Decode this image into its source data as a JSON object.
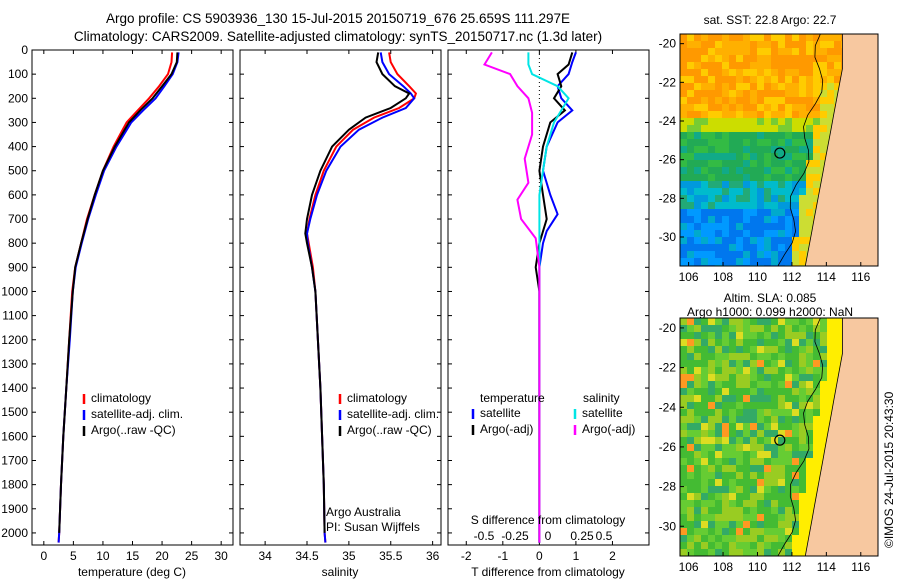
{
  "title": {
    "line1": "Argo profile: CS 5903936_130 15-Jul-2015 20150719_676 25.659S 111.297E",
    "line2": "Climatology: CARS2009. Satellite-adjusted climatology: synTS_20150717.nc (1.3d later)"
  },
  "credit": "©IMOS 24-Jul-2015 20:43:30",
  "colors": {
    "clim": "#ff0000",
    "sat": "#0000ff",
    "argo": "#000000",
    "sal_sat": "#00e5e5",
    "sal_argo": "#ff00ff",
    "land": "#f7c8a0"
  },
  "panels": {
    "temperature": {
      "xlabel": "temperature (deg C)",
      "legend": [
        "climatology",
        "satellite-adj. clim.",
        "Argo(..raw -QC)"
      ]
    },
    "salinity": {
      "xlabel": "salinity",
      "legend": [
        "climatology",
        "satellite-adj. clim.",
        "Argo(..raw -QC)"
      ],
      "note1": "Argo Australia",
      "note2": "PI: Susan Wijffels"
    },
    "difference": {
      "top_label": "S difference from climatology",
      "xlabel": "T difference from climatology",
      "legend_t_title": "temperature",
      "legend_s_title": "salinity",
      "legend_t": [
        "satellite",
        "Argo(-adj)"
      ],
      "legend_s": [
        "satellite",
        "Argo(-adj)"
      ]
    }
  },
  "maps": {
    "sst": {
      "title": "sat. SST: 22.8 Argo: 22.7"
    },
    "sla": {
      "title1": "Altim. SLA: 0.085",
      "title2": "Argo h1000: 0.099 h2000: NaN"
    }
  },
  "chart_data": [
    {
      "type": "line",
      "name": "temperature profile",
      "xlabel": "temperature (deg C)",
      "ylabel": "",
      "xlim": [
        -2,
        32
      ],
      "ylim": [
        2050,
        0
      ],
      "xticks": [
        0,
        5,
        10,
        15,
        20,
        25,
        30
      ],
      "yticks": [
        0,
        100,
        200,
        300,
        400,
        500,
        600,
        700,
        800,
        900,
        1000,
        1100,
        1200,
        1300,
        1400,
        1500,
        1600,
        1700,
        1800,
        1900,
        2000
      ],
      "series": [
        {
          "name": "climatology",
          "color": "#ff0000",
          "points": [
            [
              21.7,
              10
            ],
            [
              21.6,
              50
            ],
            [
              21.0,
              100
            ],
            [
              19.5,
              150
            ],
            [
              17.8,
              200
            ],
            [
              15.5,
              260
            ],
            [
              14.0,
              300
            ],
            [
              11.8,
              400
            ],
            [
              10.0,
              500
            ],
            [
              8.6,
              600
            ],
            [
              7.3,
              700
            ],
            [
              6.3,
              800
            ],
            [
              5.3,
              900
            ],
            [
              4.8,
              1000
            ],
            [
              4.3,
              1200
            ],
            [
              3.8,
              1400
            ],
            [
              3.3,
              1600
            ],
            [
              2.9,
              1800
            ],
            [
              2.6,
              2000
            ],
            [
              2.5,
              2040
            ]
          ]
        },
        {
          "name": "satellite-adj. clim.",
          "color": "#0000ff",
          "points": [
            [
              22.8,
              10
            ],
            [
              22.6,
              50
            ],
            [
              21.8,
              100
            ],
            [
              20.4,
              150
            ],
            [
              18.9,
              200
            ],
            [
              16.8,
              250
            ],
            [
              14.8,
              300
            ],
            [
              12.3,
              400
            ],
            [
              10.2,
              500
            ],
            [
              8.8,
              600
            ],
            [
              7.5,
              700
            ],
            [
              6.4,
              800
            ],
            [
              5.4,
              900
            ],
            [
              4.9,
              1000
            ],
            [
              4.4,
              1200
            ],
            [
              3.8,
              1400
            ],
            [
              3.3,
              1600
            ],
            [
              2.9,
              1800
            ],
            [
              2.6,
              2000
            ],
            [
              2.5,
              2040
            ]
          ]
        },
        {
          "name": "Argo(..raw -QC)",
          "color": "#000000",
          "points": [
            [
              22.6,
              10
            ],
            [
              22.5,
              50
            ],
            [
              21.6,
              100
            ],
            [
              20.0,
              150
            ],
            [
              18.4,
              200
            ],
            [
              16.3,
              250
            ],
            [
              14.4,
              300
            ],
            [
              12.0,
              400
            ],
            [
              10.0,
              500
            ],
            [
              8.6,
              600
            ],
            [
              7.4,
              700
            ],
            [
              6.3,
              800
            ],
            [
              5.3,
              900
            ],
            [
              4.9,
              1000
            ],
            [
              4.3,
              1200
            ],
            [
              3.8,
              1400
            ],
            [
              3.3,
              1600
            ],
            [
              2.9,
              1800
            ],
            [
              2.6,
              2000
            ]
          ]
        }
      ]
    },
    {
      "type": "line",
      "name": "salinity profile",
      "xlabel": "salinity",
      "ylabel": "",
      "xlim": [
        33.7,
        36.1
      ],
      "ylim": [
        2050,
        0
      ],
      "xticks": [
        34,
        34.5,
        35,
        35.5,
        36
      ],
      "series": [
        {
          "name": "climatology",
          "color": "#ff0000",
          "points": [
            [
              35.48,
              10
            ],
            [
              35.5,
              50
            ],
            [
              35.58,
              100
            ],
            [
              35.72,
              150
            ],
            [
              35.8,
              180
            ],
            [
              35.78,
              200
            ],
            [
              35.6,
              240
            ],
            [
              35.3,
              280
            ],
            [
              35.05,
              330
            ],
            [
              34.85,
              400
            ],
            [
              34.7,
              500
            ],
            [
              34.6,
              600
            ],
            [
              34.53,
              700
            ],
            [
              34.5,
              760
            ],
            [
              34.52,
              800
            ],
            [
              34.57,
              900
            ],
            [
              34.6,
              1000
            ],
            [
              34.63,
              1200
            ],
            [
              34.66,
              1400
            ],
            [
              34.68,
              1600
            ],
            [
              34.7,
              1800
            ],
            [
              34.71,
              2000
            ],
            [
              34.72,
              2040
            ]
          ]
        },
        {
          "name": "satellite-adj. clim.",
          "color": "#0000ff",
          "points": [
            [
              35.38,
              10
            ],
            [
              35.4,
              50
            ],
            [
              35.48,
              100
            ],
            [
              35.65,
              150
            ],
            [
              35.74,
              180
            ],
            [
              35.78,
              200
            ],
            [
              35.68,
              240
            ],
            [
              35.4,
              280
            ],
            [
              35.12,
              330
            ],
            [
              34.9,
              400
            ],
            [
              34.73,
              500
            ],
            [
              34.62,
              600
            ],
            [
              34.54,
              700
            ],
            [
              34.5,
              760
            ],
            [
              34.51,
              800
            ],
            [
              34.56,
              900
            ],
            [
              34.6,
              1000
            ],
            [
              34.63,
              1200
            ],
            [
              34.66,
              1400
            ],
            [
              34.68,
              1600
            ],
            [
              34.7,
              1800
            ],
            [
              34.71,
              2000
            ],
            [
              34.72,
              2040
            ]
          ]
        },
        {
          "name": "Argo(..raw -QC)",
          "color": "#000000",
          "points": [
            [
              35.35,
              10
            ],
            [
              35.33,
              50
            ],
            [
              35.4,
              100
            ],
            [
              35.55,
              150
            ],
            [
              35.72,
              180
            ],
            [
              35.68,
              200
            ],
            [
              35.5,
              240
            ],
            [
              35.2,
              280
            ],
            [
              35.0,
              330
            ],
            [
              34.8,
              400
            ],
            [
              34.66,
              500
            ],
            [
              34.56,
              600
            ],
            [
              34.5,
              700
            ],
            [
              34.48,
              760
            ],
            [
              34.5,
              800
            ],
            [
              34.56,
              900
            ],
            [
              34.6,
              1000
            ],
            [
              34.63,
              1200
            ],
            [
              34.66,
              1400
            ],
            [
              34.68,
              1600
            ],
            [
              34.7,
              1800
            ],
            [
              34.71,
              2000
            ]
          ]
        }
      ]
    },
    {
      "type": "line",
      "name": "difference from climatology",
      "xlabel": "T difference from climatology",
      "top_label": "S difference from climatology",
      "xlim": [
        -2.5,
        3.0
      ],
      "ylim": [
        2050,
        0
      ],
      "xticks": [
        -2,
        -1,
        0,
        1,
        2
      ],
      "top_xticks": [
        -0.5,
        -0.25,
        0,
        0.25,
        0.5
      ],
      "series": [
        {
          "name": "temperature satellite",
          "color": "#0000ff",
          "points": [
            [
              1.0,
              10
            ],
            [
              0.9,
              50
            ],
            [
              0.8,
              100
            ],
            [
              0.5,
              150
            ],
            [
              0.6,
              200
            ],
            [
              0.9,
              250
            ],
            [
              0.5,
              300
            ],
            [
              0.2,
              400
            ],
            [
              0.1,
              500
            ],
            [
              0.3,
              600
            ],
            [
              0.5,
              680
            ],
            [
              0.2,
              750
            ],
            [
              0.1,
              800
            ],
            [
              0.0,
              900
            ],
            [
              0.0,
              1000
            ],
            [
              0.0,
              2040
            ]
          ]
        },
        {
          "name": "temperature Argo(-adj)",
          "color": "#000000",
          "points": [
            [
              0.9,
              10
            ],
            [
              0.8,
              60
            ],
            [
              0.5,
              100
            ],
            [
              0.6,
              150
            ],
            [
              0.4,
              200
            ],
            [
              0.7,
              250
            ],
            [
              0.3,
              300
            ],
            [
              0.1,
              400
            ],
            [
              0.0,
              500
            ],
            [
              0.1,
              600
            ],
            [
              0.2,
              700
            ],
            [
              0.0,
              800
            ],
            [
              -0.1,
              900
            ],
            [
              0.0,
              1000
            ],
            [
              0.0,
              2040
            ]
          ]
        },
        {
          "name": "salinity satellite",
          "color": "#00e5e5",
          "points": [
            [
              -0.3,
              10
            ],
            [
              -0.3,
              60
            ],
            [
              -0.2,
              100
            ],
            [
              0.5,
              150
            ],
            [
              0.8,
              200
            ],
            [
              0.6,
              250
            ],
            [
              0.4,
              300
            ],
            [
              0.2,
              400
            ],
            [
              0.1,
              500
            ],
            [
              0.0,
              600
            ],
            [
              0.0,
              700
            ],
            [
              0.0,
              800
            ],
            [
              0.0,
              1000
            ],
            [
              0.0,
              2040
            ]
          ]
        },
        {
          "name": "salinity Argo(-adj)",
          "color": "#ff00ff",
          "points": [
            [
              -1.3,
              10
            ],
            [
              -1.5,
              60
            ],
            [
              -0.8,
              100
            ],
            [
              -0.6,
              150
            ],
            [
              -0.3,
              200
            ],
            [
              -0.2,
              260
            ],
            [
              -0.2,
              350
            ],
            [
              -0.4,
              450
            ],
            [
              -0.3,
              550
            ],
            [
              -0.6,
              620
            ],
            [
              -0.5,
              700
            ],
            [
              -0.1,
              780
            ],
            [
              0.0,
              900
            ],
            [
              0.0,
              1000
            ],
            [
              0.0,
              2040
            ]
          ]
        }
      ]
    },
    {
      "type": "heatmap",
      "name": "sat. SST map",
      "title": "sat. SST: 22.8 Argo: 22.7",
      "xlim": [
        105.5,
        117
      ],
      "ylim": [
        -31.5,
        -19.5
      ],
      "xticks": [
        106,
        108,
        110,
        112,
        114,
        116
      ],
      "yticks": [
        -20,
        -22,
        -24,
        -26,
        -28,
        -30
      ],
      "marker": [
        111.297,
        -25.659
      ]
    },
    {
      "type": "heatmap",
      "name": "altim. SLA map",
      "title": "Altim. SLA: 0.085",
      "xlim": [
        105.5,
        117
      ],
      "ylim": [
        -31.5,
        -19.5
      ],
      "xticks": [
        106,
        108,
        110,
        112,
        114,
        116
      ],
      "yticks": [
        -20,
        -22,
        -24,
        -26,
        -28,
        -30
      ],
      "marker": [
        111.297,
        -25.659
      ]
    }
  ]
}
